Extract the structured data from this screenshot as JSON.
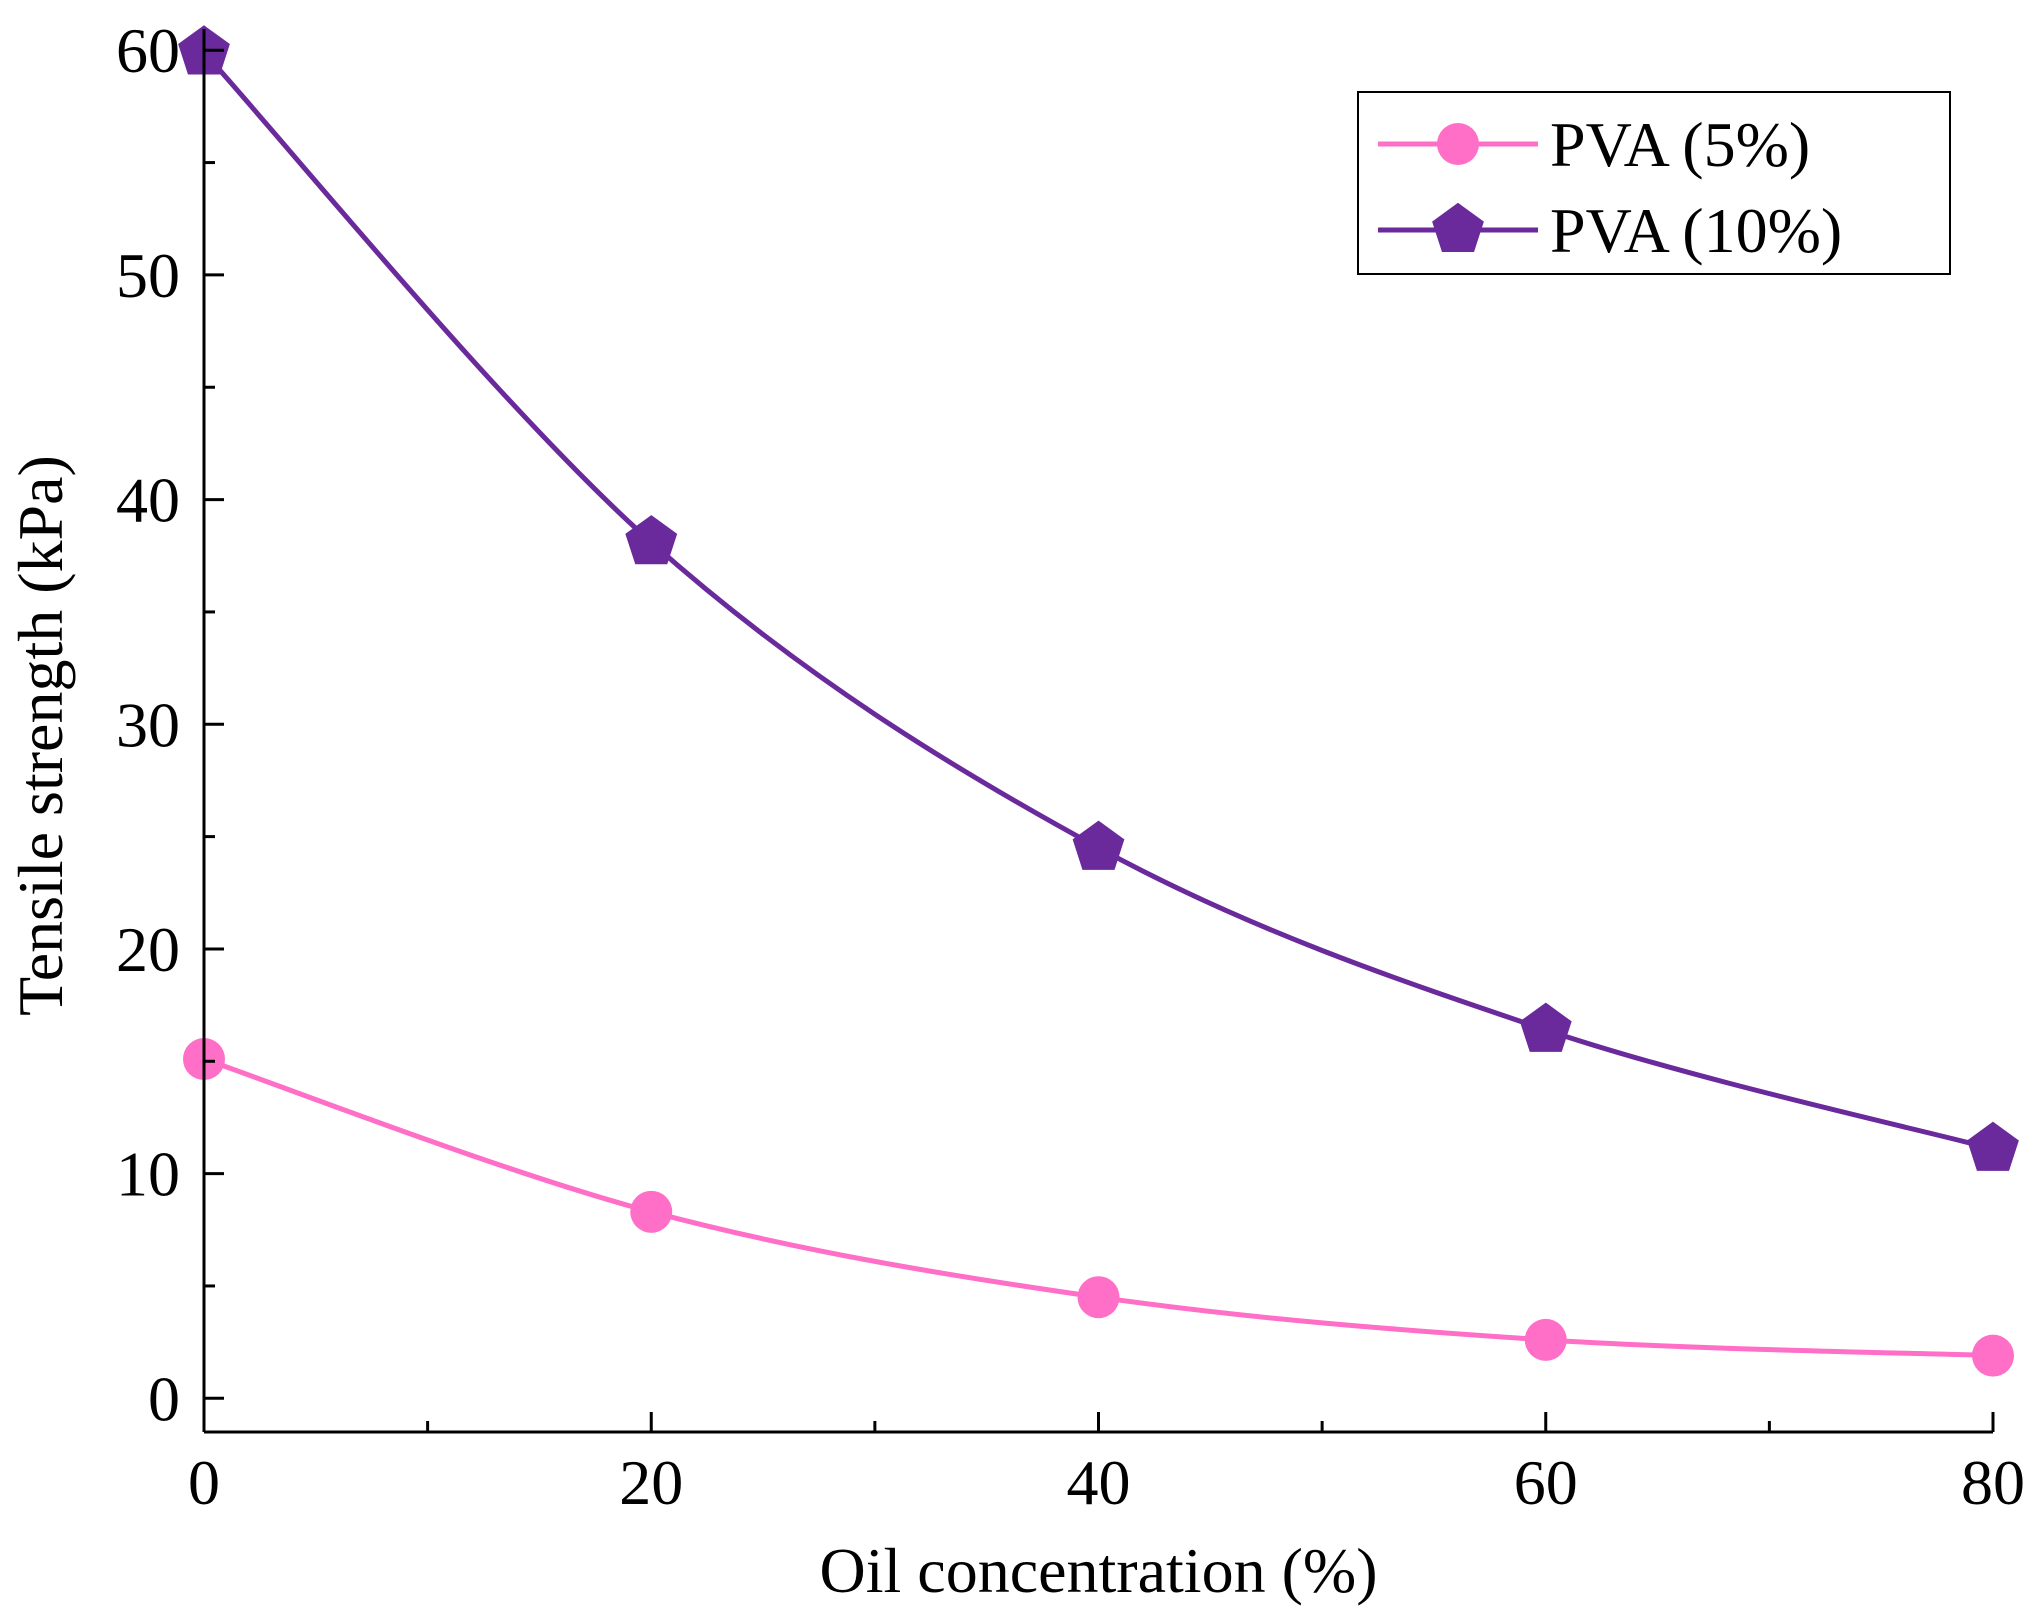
{
  "chart_data": {
    "type": "line",
    "title": "",
    "xlabel": "Oil concentration  (%)",
    "ylabel": "Tensile strength (kPa)",
    "x": [
      0,
      20,
      40,
      60,
      80
    ],
    "xlim": [
      0,
      80
    ],
    "ylim": [
      -1.5,
      60.5
    ],
    "x_ticks": [
      0,
      20,
      40,
      60,
      80
    ],
    "x_tick_labels": [
      "0",
      "20",
      "40",
      "60",
      "80"
    ],
    "y_ticks": [
      0,
      10,
      20,
      30,
      40,
      50,
      60
    ],
    "y_tick_labels": [
      "0",
      "10",
      "20",
      "30",
      "40",
      "50",
      "60"
    ],
    "grid": false,
    "legend_position": "top-right",
    "series": [
      {
        "name": "PVA (5%)",
        "marker": "circle",
        "color": "#ff6ec7",
        "values": [
          15.1,
          8.3,
          4.5,
          2.6,
          1.9
        ]
      },
      {
        "name": "PVA (10%)",
        "marker": "pentagon",
        "color": "#6a2a9c",
        "values": [
          59.9,
          38.1,
          24.5,
          16.4,
          11.1
        ]
      }
    ]
  }
}
